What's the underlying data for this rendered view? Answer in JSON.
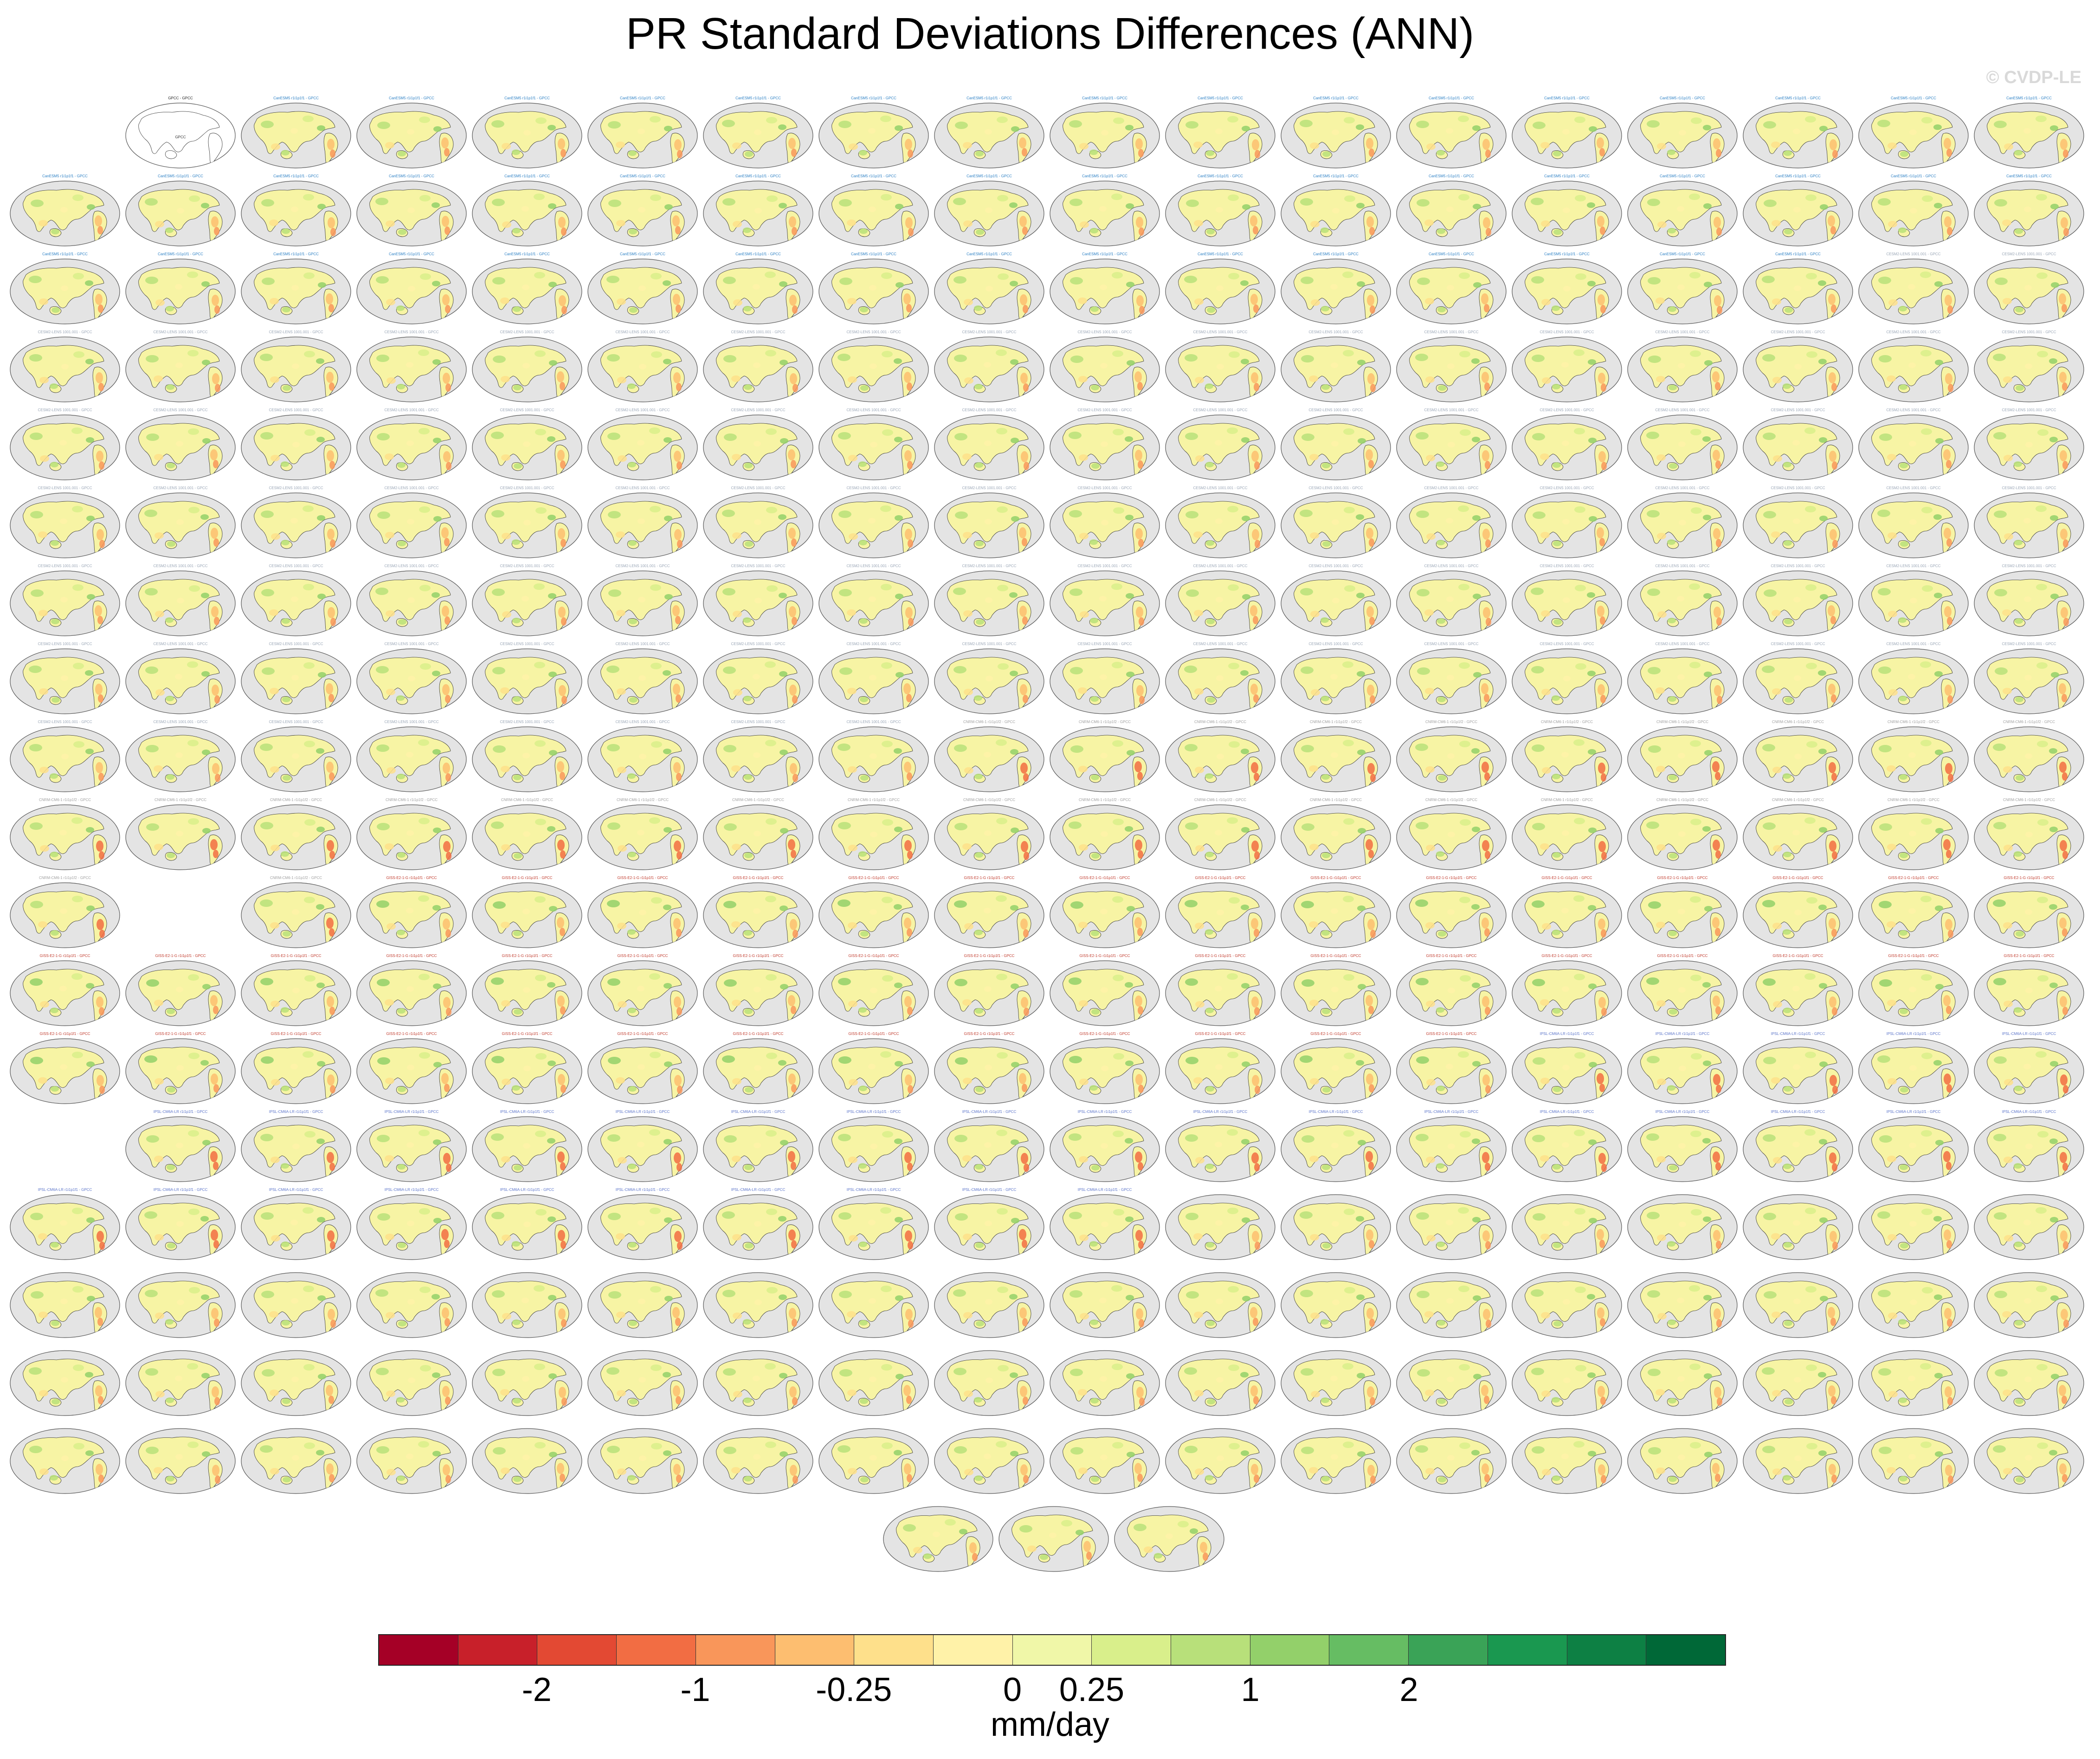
{
  "title": "PR Standard Deviations Differences (ANN)",
  "watermark": "© CVDP-LE",
  "chart_data": {
    "type": "map-panel-grid",
    "title": "PR Standard Deviations Differences (ANN)",
    "colorbar": {
      "units": "mm/day",
      "tick_labels": [
        "-2",
        "-1",
        "-0.25",
        "0",
        "0.25",
        "1",
        "2"
      ],
      "colors": [
        "#a50026",
        "#c8202a",
        "#e34933",
        "#f26d43",
        "#f9965a",
        "#fdbe70",
        "#fee08b",
        "#fff2a8",
        "#f0f7a8",
        "#d9ef8b",
        "#b8e07a",
        "#93d06a",
        "#66bd63",
        "#3aa357",
        "#1a9850",
        "#0d8044",
        "#006837"
      ],
      "tick_boundaries": [
        2,
        4,
        6,
        8,
        9,
        11,
        13
      ]
    },
    "panels": [
      {
        "title": "GPCC - GPCC",
        "group": "reference"
      },
      {
        "title": "CanESM5 r1i1p1f1 - GPCC",
        "group": "CanESM5"
      },
      {
        "title": "CanESM5 r2i1p1f1 - GPCC",
        "group": "CanESM5"
      },
      {
        "title": "CESM2-LENS 1001.001 - GPCC",
        "group": "CESM2-LENS"
      },
      {
        "title": "CNRM-CM6-1 r1i1p1f2 - GPCC",
        "group": "CNRM-CM6-1"
      },
      {
        "title": "GISS-E2-1-G r1i1p1f1 - GPCC",
        "group": "GISS-E2-1-G"
      },
      {
        "title": "IPSL-CM6A-LR r1i1p1f1 - GPCC",
        "group": "IPSL-CM6A-LR"
      }
    ],
    "panel_counts": {
      "reference": 1,
      "CanESM5": 50,
      "CESM2-LENS": 100,
      "CNRM-CM6-1": 30,
      "GISS-E2-1-G": 46,
      "IPSL-CM6A-LR": 32,
      "other": 38
    }
  }
}
